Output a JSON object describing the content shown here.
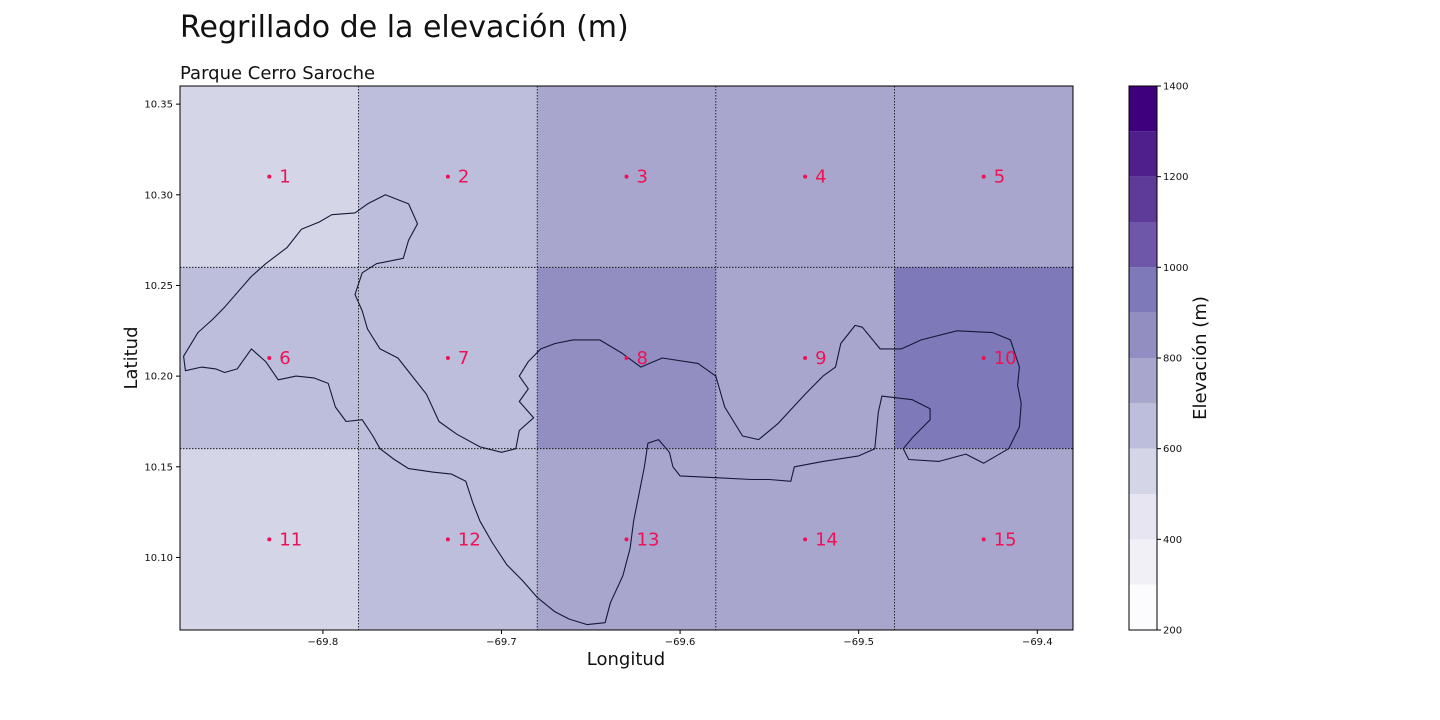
{
  "title": "Regrillado de la elevación (m)",
  "subtitle": "Parque Cerro Saroche",
  "chart_data": {
    "type": "heatmap",
    "xlabel": "Longitud",
    "ylabel": "Latitud",
    "xlim": [
      -69.88,
      -69.38
    ],
    "ylim": [
      10.06,
      10.36
    ],
    "xticks": [
      -69.8,
      -69.7,
      -69.6,
      -69.5,
      -69.4
    ],
    "xtick_labels": [
      "−69.8",
      "−69.7",
      "−69.6",
      "−69.5",
      "−69.4"
    ],
    "yticks": [
      10.1,
      10.15,
      10.2,
      10.25,
      10.3,
      10.35
    ],
    "ytick_labels": [
      "10.10",
      "10.15",
      "10.20",
      "10.25",
      "10.30",
      "10.35"
    ],
    "cell_edges_lon": [
      -69.88,
      -69.78,
      -69.68,
      -69.58,
      -69.48,
      -69.38
    ],
    "cell_edges_lat": [
      10.36,
      10.26,
      10.16,
      10.06
    ],
    "cells": [
      {
        "id": "1",
        "lon": -69.83,
        "lat": 10.31,
        "elevation": 550
      },
      {
        "id": "2",
        "lon": -69.73,
        "lat": 10.31,
        "elevation": 650
      },
      {
        "id": "3",
        "lon": -69.63,
        "lat": 10.31,
        "elevation": 750
      },
      {
        "id": "4",
        "lon": -69.53,
        "lat": 10.31,
        "elevation": 750
      },
      {
        "id": "5",
        "lon": -69.43,
        "lat": 10.31,
        "elevation": 750
      },
      {
        "id": "6",
        "lon": -69.83,
        "lat": 10.21,
        "elevation": 650
      },
      {
        "id": "7",
        "lon": -69.73,
        "lat": 10.21,
        "elevation": 650
      },
      {
        "id": "8",
        "lon": -69.63,
        "lat": 10.21,
        "elevation": 850
      },
      {
        "id": "9",
        "lon": -69.53,
        "lat": 10.21,
        "elevation": 750
      },
      {
        "id": "10",
        "lon": -69.43,
        "lat": 10.21,
        "elevation": 950
      },
      {
        "id": "11",
        "lon": -69.83,
        "lat": 10.11,
        "elevation": 550
      },
      {
        "id": "12",
        "lon": -69.73,
        "lat": 10.11,
        "elevation": 650
      },
      {
        "id": "13",
        "lon": -69.63,
        "lat": 10.11,
        "elevation": 750
      },
      {
        "id": "14",
        "lon": -69.53,
        "lat": 10.11,
        "elevation": 750
      },
      {
        "id": "15",
        "lon": -69.43,
        "lat": 10.11,
        "elevation": 750
      }
    ],
    "colorbar": {
      "label": "Elevación (m)",
      "min": 200,
      "max": 1400,
      "ticks": [
        200,
        400,
        600,
        800,
        1000,
        1200,
        1400
      ],
      "tick_labels": [
        "200",
        "400",
        "600",
        "800",
        "1000",
        "1200",
        "1400"
      ],
      "bins": [
        {
          "from": 200,
          "to": 300,
          "color": "#fcfbfd"
        },
        {
          "from": 300,
          "to": 400,
          "color": "#f2f0f7"
        },
        {
          "from": 400,
          "to": 500,
          "color": "#e6e5f1"
        },
        {
          "from": 500,
          "to": 600,
          "color": "#d5d5e8"
        },
        {
          "from": 600,
          "to": 700,
          "color": "#bdbedc"
        },
        {
          "from": 700,
          "to": 800,
          "color": "#a8a6cd"
        },
        {
          "from": 800,
          "to": 900,
          "color": "#928ec1"
        },
        {
          "from": 900,
          "to": 1000,
          "color": "#7e79b8"
        },
        {
          "from": 1000,
          "to": 1100,
          "color": "#6e56a8"
        },
        {
          "from": 1100,
          "to": 1200,
          "color": "#5e3b99"
        },
        {
          "from": 1200,
          "to": 1300,
          "color": "#4f1f8b"
        },
        {
          "from": 1300,
          "to": 1400,
          "color": "#3f007d"
        }
      ]
    },
    "park_outline": [
      [
        -69.877,
        10.203
      ],
      [
        -69.868,
        10.205
      ],
      [
        -69.86,
        10.204
      ],
      [
        -69.855,
        10.202
      ],
      [
        -69.848,
        10.204
      ],
      [
        -69.84,
        10.215
      ],
      [
        -69.832,
        10.208
      ],
      [
        -69.825,
        10.198
      ],
      [
        -69.815,
        10.2
      ],
      [
        -69.805,
        10.199
      ],
      [
        -69.797,
        10.196
      ],
      [
        -69.793,
        10.183
      ],
      [
        -69.787,
        10.175
      ],
      [
        -69.778,
        10.176
      ],
      [
        -69.772,
        10.167
      ],
      [
        -69.768,
        10.16
      ],
      [
        -69.76,
        10.154
      ],
      [
        -69.752,
        10.149
      ],
      [
        -69.738,
        10.147
      ],
      [
        -69.728,
        10.146
      ],
      [
        -69.72,
        10.142
      ],
      [
        -69.716,
        10.13
      ],
      [
        -69.712,
        10.12
      ],
      [
        -69.705,
        10.108
      ],
      [
        -69.697,
        10.096
      ],
      [
        -69.688,
        10.087
      ],
      [
        -69.68,
        10.078
      ],
      [
        -69.67,
        10.07
      ],
      [
        -69.662,
        10.066
      ],
      [
        -69.652,
        10.063
      ],
      [
        -69.642,
        10.064
      ],
      [
        -69.639,
        10.075
      ],
      [
        -69.632,
        10.09
      ],
      [
        -69.628,
        10.105
      ],
      [
        -69.626,
        10.12
      ],
      [
        -69.623,
        10.135
      ],
      [
        -69.62,
        10.15
      ],
      [
        -69.618,
        10.163
      ],
      [
        -69.612,
        10.165
      ],
      [
        -69.606,
        10.158
      ],
      [
        -69.604,
        10.15
      ],
      [
        -69.6,
        10.145
      ],
      [
        -69.58,
        10.144
      ],
      [
        -69.56,
        10.143
      ],
      [
        -69.55,
        10.143
      ],
      [
        -69.538,
        10.142
      ],
      [
        -69.536,
        10.15
      ],
      [
        -69.52,
        10.153
      ],
      [
        -69.5,
        10.156
      ],
      [
        -69.491,
        10.16
      ],
      [
        -69.489,
        10.18
      ],
      [
        -69.487,
        10.189
      ],
      [
        -69.47,
        10.187
      ],
      [
        -69.46,
        10.182
      ],
      [
        -69.46,
        10.176
      ],
      [
        -69.47,
        10.166
      ],
      [
        -69.475,
        10.16
      ],
      [
        -69.472,
        10.154
      ],
      [
        -69.455,
        10.153
      ],
      [
        -69.44,
        10.157
      ],
      [
        -69.43,
        10.152
      ],
      [
        -69.416,
        10.16
      ],
      [
        -69.41,
        10.172
      ],
      [
        -69.409,
        10.185
      ],
      [
        -69.411,
        10.195
      ],
      [
        -69.41,
        10.205
      ],
      [
        -69.415,
        10.22
      ],
      [
        -69.425,
        10.224
      ],
      [
        -69.445,
        10.225
      ],
      [
        -69.465,
        10.22
      ],
      [
        -69.476,
        10.215
      ],
      [
        -69.488,
        10.215
      ],
      [
        -69.498,
        10.227
      ],
      [
        -69.502,
        10.228
      ],
      [
        -69.51,
        10.218
      ],
      [
        -69.513,
        10.205
      ],
      [
        -69.52,
        10.2
      ],
      [
        -69.53,
        10.19
      ],
      [
        -69.545,
        10.174
      ],
      [
        -69.556,
        10.165
      ],
      [
        -69.565,
        10.167
      ],
      [
        -69.575,
        10.183
      ],
      [
        -69.58,
        10.2
      ],
      [
        -69.59,
        10.207
      ],
      [
        -69.61,
        10.21
      ],
      [
        -69.622,
        10.205
      ],
      [
        -69.633,
        10.213
      ],
      [
        -69.645,
        10.22
      ],
      [
        -69.66,
        10.22
      ],
      [
        -69.67,
        10.218
      ],
      [
        -69.678,
        10.215
      ],
      [
        -69.685,
        10.208
      ],
      [
        -69.69,
        10.2
      ],
      [
        -69.685,
        10.193
      ],
      [
        -69.69,
        10.186
      ],
      [
        -69.682,
        10.177
      ],
      [
        -69.69,
        10.17
      ],
      [
        -69.692,
        10.16
      ],
      [
        -69.7,
        10.158
      ],
      [
        -69.712,
        10.161
      ],
      [
        -69.725,
        10.168
      ],
      [
        -69.735,
        10.175
      ],
      [
        -69.742,
        10.19
      ],
      [
        -69.75,
        10.2
      ],
      [
        -69.758,
        10.21
      ],
      [
        -69.768,
        10.215
      ],
      [
        -69.775,
        10.226
      ],
      [
        -69.778,
        10.236
      ],
      [
        -69.782,
        10.245
      ],
      [
        -69.778,
        10.257
      ],
      [
        -69.77,
        10.262
      ],
      [
        -69.755,
        10.265
      ],
      [
        -69.752,
        10.275
      ],
      [
        -69.747,
        10.284
      ],
      [
        -69.752,
        10.295
      ],
      [
        -69.765,
        10.3
      ],
      [
        -69.775,
        10.295
      ],
      [
        -69.782,
        10.29
      ],
      [
        -69.795,
        10.289
      ],
      [
        -69.802,
        10.285
      ],
      [
        -69.812,
        10.281
      ],
      [
        -69.82,
        10.271
      ],
      [
        -69.832,
        10.262
      ],
      [
        -69.84,
        10.255
      ],
      [
        -69.848,
        10.246
      ],
      [
        -69.855,
        10.238
      ],
      [
        -69.862,
        10.231
      ],
      [
        -69.87,
        10.224
      ],
      [
        -69.878,
        10.211
      ],
      [
        -69.877,
        10.203
      ]
    ]
  }
}
